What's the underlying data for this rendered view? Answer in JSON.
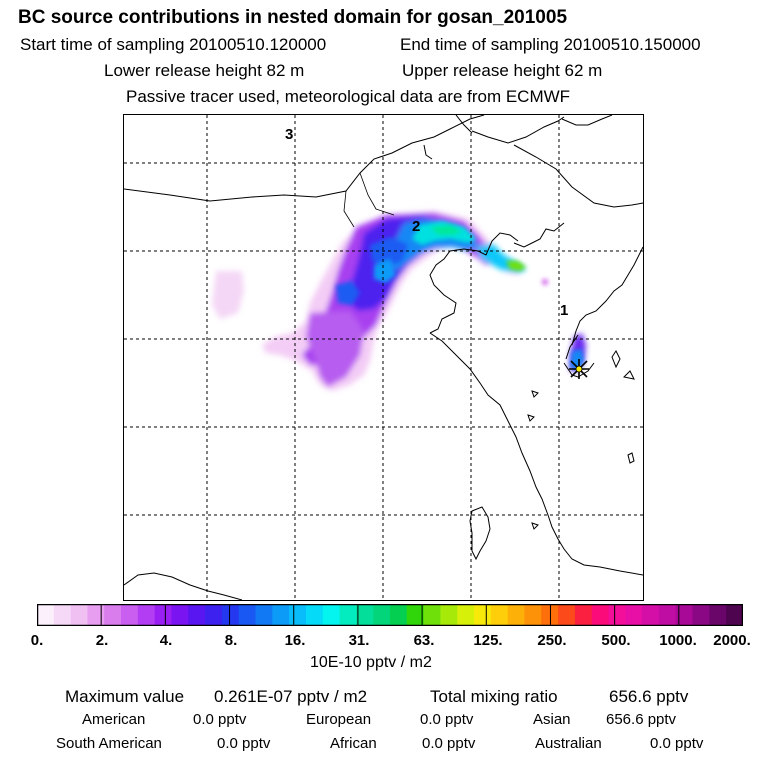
{
  "header": {
    "title": "BC  source contributions in nested domain for gosan_201005",
    "start_time": "Start time of sampling 20100510.120000",
    "end_time": "End time of sampling 20100510.150000",
    "lower_release": "Lower release height   82 m",
    "upper_release": "Upper release height   62 m",
    "tracer_note": "Passive tracer used, meteorological data are from ECMWF"
  },
  "map": {
    "region_labels": [
      "1",
      "2",
      "3"
    ],
    "receptor_marker": "star-marker"
  },
  "colorbar": {
    "ticks": [
      "0.",
      "2.",
      "4.",
      "8.",
      "16.",
      "31.",
      "63.",
      "125.",
      "250.",
      "500.",
      "1000.",
      "2000."
    ],
    "colors": [
      "#fbf0fb",
      "#f5d9f6",
      "#f0c0f3",
      "#e79ef0",
      "#d97ded",
      "#c95ef0",
      "#b23df2",
      "#9a1ff3",
      "#7a14f1",
      "#5a16f0",
      "#3d21ef",
      "#2338ef",
      "#1958f2",
      "#1279f5",
      "#0d9bf8",
      "#08bdf9",
      "#05dbf9",
      "#04f5ef",
      "#03ecc0",
      "#03de9a",
      "#03d67a",
      "#05cf50",
      "#31d60a",
      "#6fe00a",
      "#a7ea0a",
      "#d7f00a",
      "#f7ea0a",
      "#fdce09",
      "#fdb008",
      "#fd9108",
      "#fd6f0a",
      "#fc4a1a",
      "#fb2040",
      "#fb0b7a",
      "#f30f99",
      "#e80fa6",
      "#d40fa7",
      "#bf0ca3",
      "#a80996",
      "#8a0883",
      "#6a066a",
      "#4f0450"
    ],
    "unit_label": "10E-10 pptv / m2"
  },
  "stats": {
    "max_label": "Maximum value",
    "max_value": "0.261E-07 pptv / m2",
    "total_label": "Total mixing ratio",
    "total_value": "656.6 pptv",
    "regions": [
      {
        "name": "American",
        "value": "0.0 pptv"
      },
      {
        "name": "European",
        "value": "0.0 pptv"
      },
      {
        "name": "Asian",
        "value": "656.6 pptv"
      },
      {
        "name": "South American",
        "value": "0.0 pptv"
      },
      {
        "name": "African",
        "value": "0.0 pptv"
      },
      {
        "name": "Australian",
        "value": "0.0 pptv"
      }
    ]
  }
}
